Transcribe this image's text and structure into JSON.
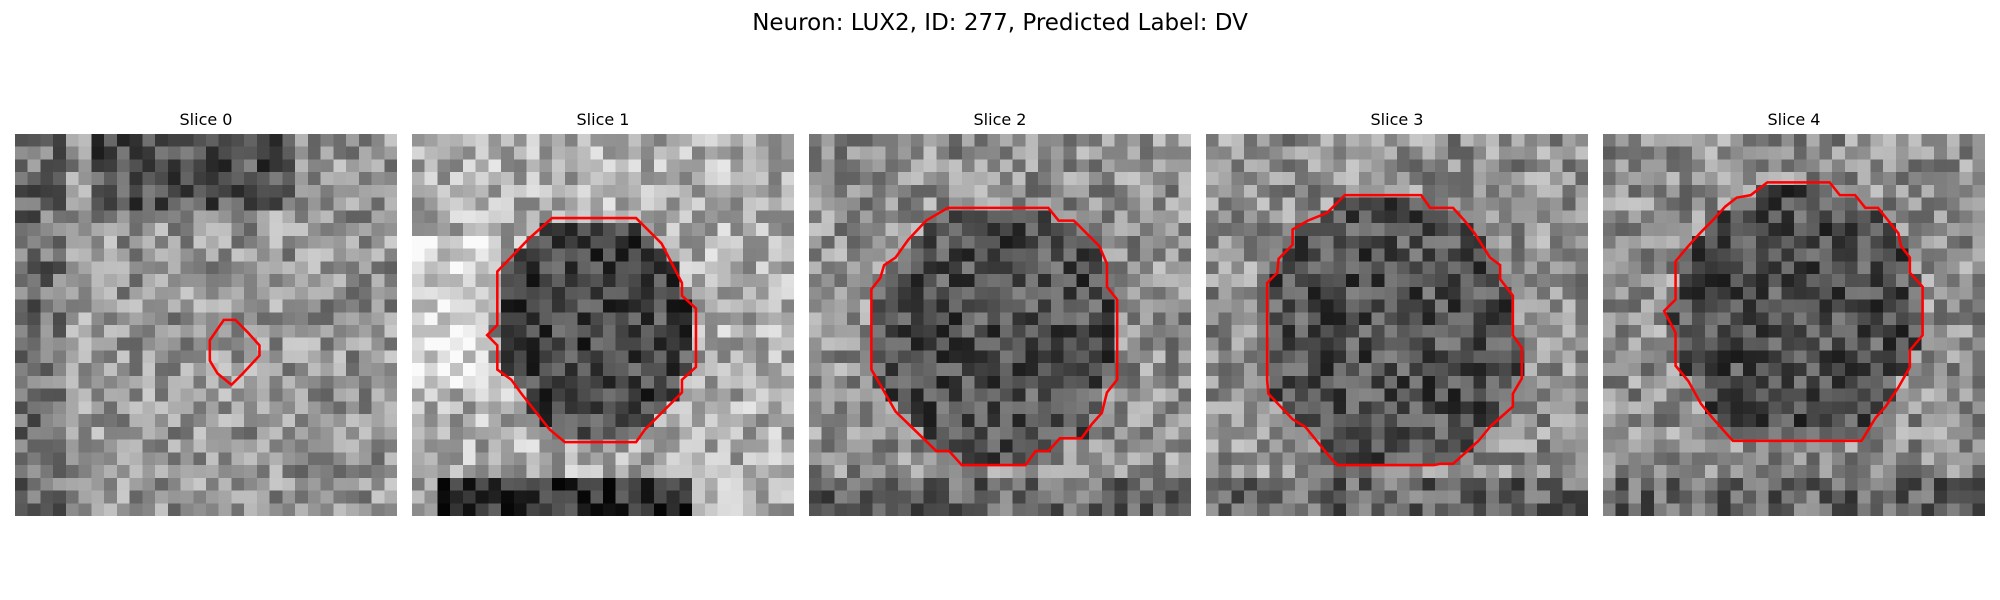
{
  "figure": {
    "title": "Neuron: LUX2, ID: 277, Predicted Label: DV",
    "contour_color": "#ff0000"
  },
  "panels": [
    {
      "title": "Slice 0",
      "seed": 11,
      "contrast": "mid-dark-top"
    },
    {
      "title": "Slice 1",
      "seed": 23,
      "contrast": "bright-surround"
    },
    {
      "title": "Slice 2",
      "seed": 37,
      "contrast": "mid-surround"
    },
    {
      "title": "Slice 3",
      "seed": 41,
      "contrast": "mid-surround"
    },
    {
      "title": "Slice 4",
      "seed": 59,
      "contrast": "mid-surround"
    }
  ]
}
